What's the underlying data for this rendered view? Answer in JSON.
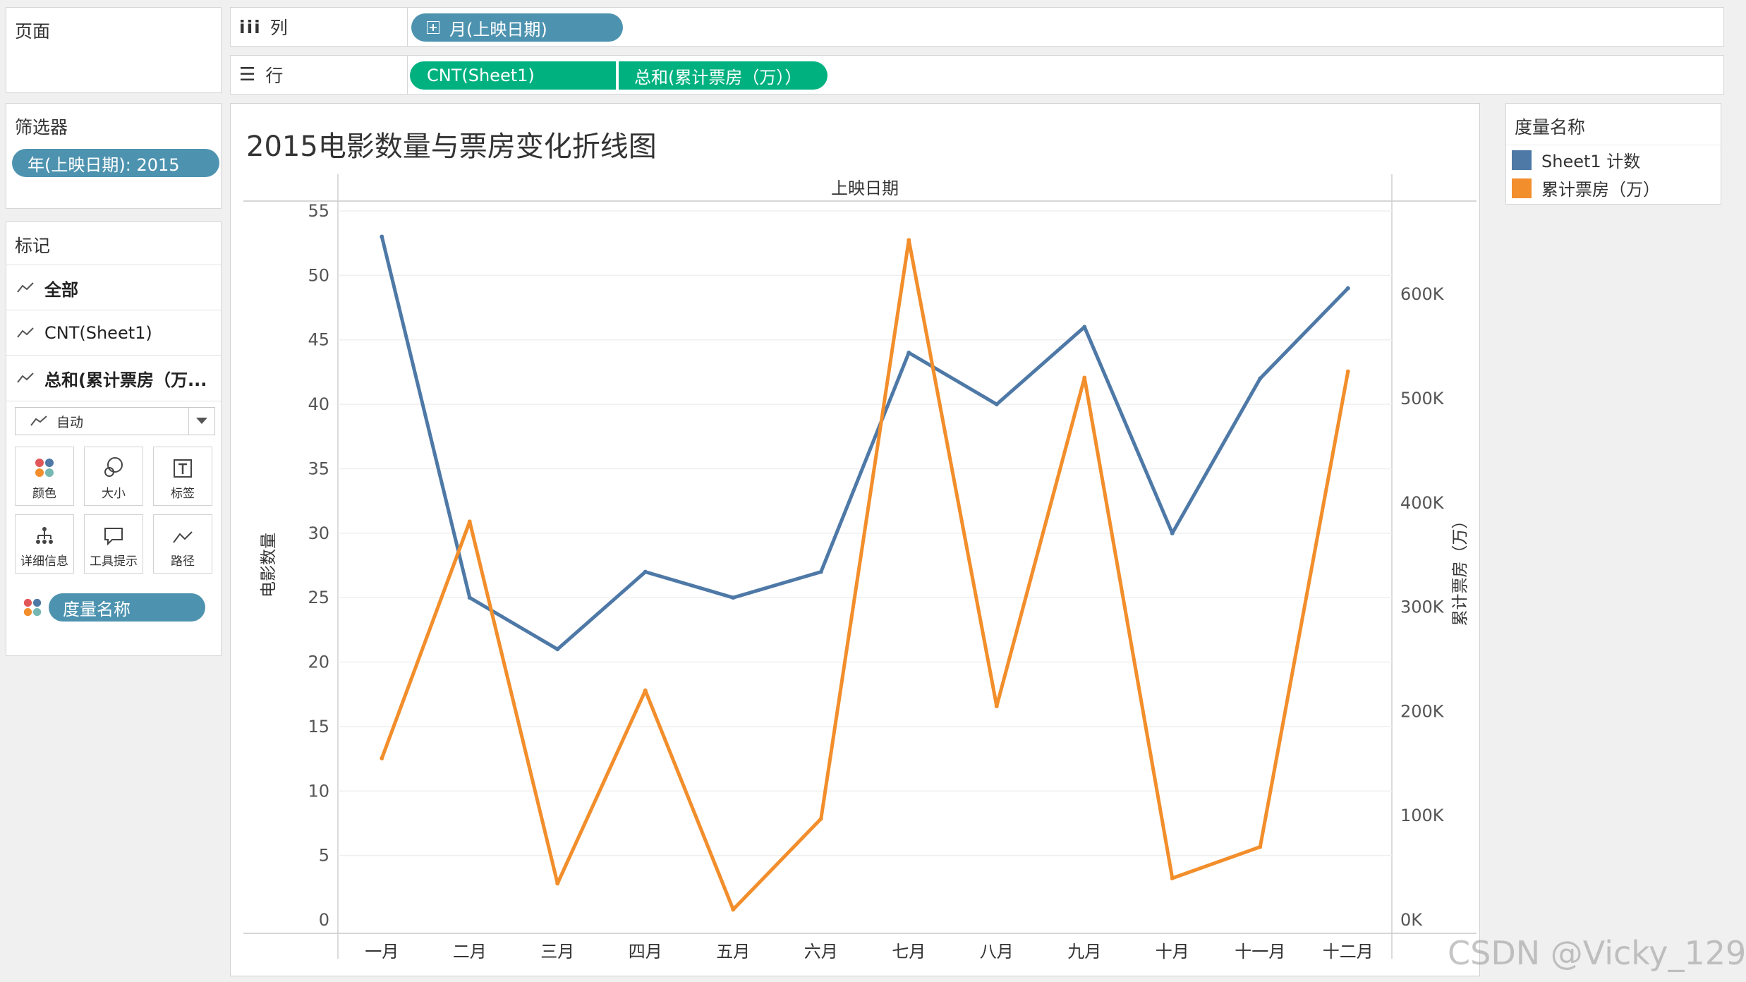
{
  "pages_panel": {
    "title": "页面"
  },
  "shelves": {
    "columns": {
      "label": "列",
      "pill": "月(上映日期)"
    },
    "rows": {
      "label": "行",
      "pills": [
        "CNT(Sheet1)",
        "总和(累计票房（万））"
      ]
    }
  },
  "filters_panel": {
    "title": "筛选器",
    "pill": "年(上映日期): 2015"
  },
  "marks_panel": {
    "title": "标记",
    "cards": [
      "全部",
      "CNT(Sheet1)",
      "总和(累计票房（万..."
    ],
    "mark_type": "自动",
    "buttons": [
      "颜色",
      "大小",
      "标签",
      "详细信息",
      "工具提示",
      "路径"
    ],
    "color_pill": "度量名称"
  },
  "legend": {
    "title": "度量名称",
    "items": [
      {
        "label": "Sheet1 计数",
        "color": "#4e79a7"
      },
      {
        "label": "累计票房（万）",
        "color": "#f28e2b"
      }
    ]
  },
  "watermark": "CSDN @Vicky_129",
  "chart_data": {
    "type": "line",
    "title": "2015电影数量与票房变化折线图",
    "header": "上映日期",
    "categories": [
      "一月",
      "二月",
      "三月",
      "四月",
      "五月",
      "六月",
      "七月",
      "八月",
      "九月",
      "十月",
      "十一月",
      "十二月"
    ],
    "left_axis": {
      "label": "电影数量",
      "range": [
        0,
        55
      ],
      "ticks": [
        0,
        5,
        10,
        15,
        20,
        25,
        30,
        35,
        40,
        45,
        50,
        55
      ]
    },
    "right_axis": {
      "label": "累计票房（万）",
      "range": [
        0,
        680000
      ],
      "ticks": [
        0,
        100000,
        200000,
        300000,
        400000,
        500000,
        600000
      ],
      "tick_labels": [
        "0K",
        "100K",
        "200K",
        "300K",
        "400K",
        "500K",
        "600K"
      ]
    },
    "series": [
      {
        "name": "Sheet1 计数",
        "axis": "left",
        "color": "#4e79a7",
        "values": [
          53,
          25,
          21,
          27,
          25,
          27,
          44,
          40,
          46,
          30,
          42,
          49
        ]
      },
      {
        "name": "累计票房（万）",
        "axis": "right",
        "color": "#f28e2b",
        "values": [
          155000,
          382000,
          35000,
          220000,
          10000,
          97000,
          652000,
          205000,
          520000,
          40000,
          70000,
          526000
        ]
      }
    ],
    "grid": true
  }
}
